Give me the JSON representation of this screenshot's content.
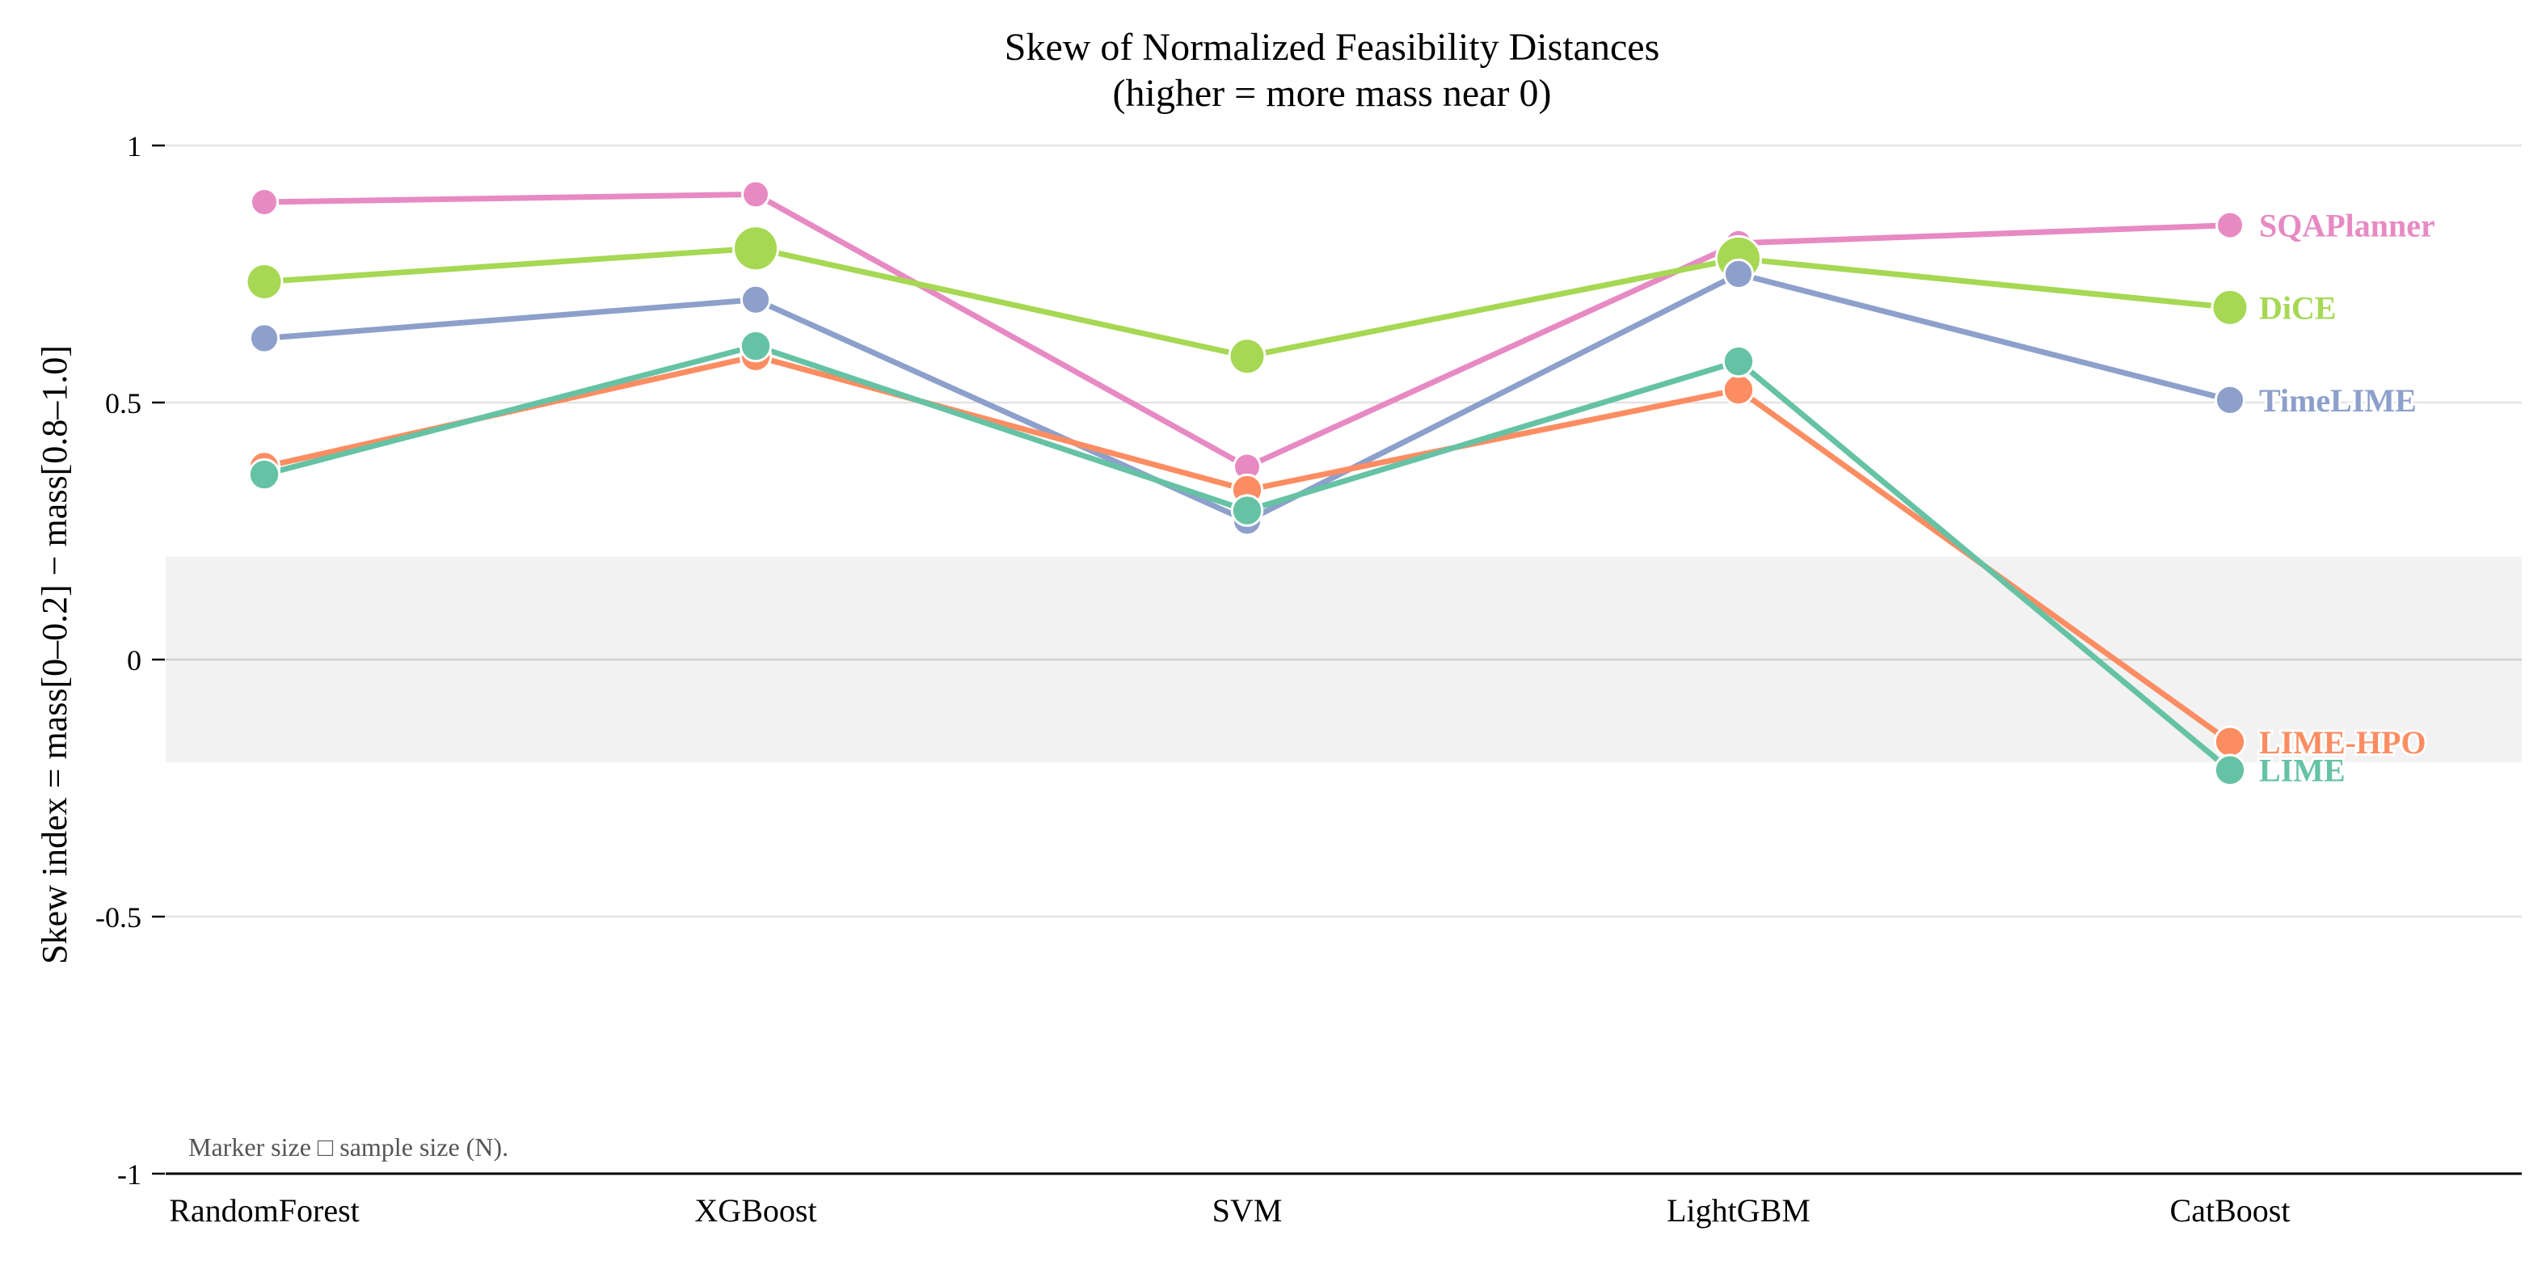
{
  "chart_data": {
    "type": "line",
    "title": "Skew of Normalized Feasibility Distances",
    "subtitle": "(higher = more mass near 0)",
    "xlabel": "",
    "ylabel": "Skew index  =  mass[0–0.2] − mass[0.8–1.0]",
    "categories": [
      "RandomForest",
      "XGBoost",
      "SVM",
      "LightGBM",
      "CatBoost"
    ],
    "ylim": [
      -1,
      1
    ],
    "yticks": [
      {
        "value": 1,
        "label": "1"
      },
      {
        "value": 0.5,
        "label": "0.5"
      },
      {
        "value": 0,
        "label": "0"
      },
      {
        "value": -0.5,
        "label": "-0.5"
      },
      {
        "value": -1,
        "label": "-1"
      }
    ],
    "grid": "horizontal",
    "neutral_band": [
      -0.2,
      0.2
    ],
    "legend": "inline labels at right end of each series",
    "annotation": "Marker size □ sample size (N).",
    "series": [
      {
        "name": "SQAPlanner",
        "color": "#e78ac3",
        "values": [
          0.89,
          0.905,
          0.375,
          0.81,
          0.845
        ],
        "marker_size": [
          1,
          1,
          1,
          1,
          1
        ]
      },
      {
        "name": "DiCE",
        "color": "#a6d854",
        "values": [
          0.735,
          0.8,
          0.59,
          0.78,
          0.685
        ],
        "marker_size": [
          2,
          3,
          2,
          3,
          2
        ]
      },
      {
        "name": "TimeLIME",
        "color": "#8da0cb",
        "values": [
          0.625,
          0.7,
          0.27,
          0.75,
          0.505
        ],
        "marker_size": [
          1.2,
          1.2,
          1.2,
          1.2,
          1.2
        ]
      },
      {
        "name": "LIME-HPO",
        "color": "#fc8d62",
        "values": [
          0.375,
          0.59,
          0.33,
          0.525,
          -0.16
        ],
        "marker_size": [
          1.4,
          1.4,
          1.4,
          1.4,
          1.4
        ]
      },
      {
        "name": "LIME",
        "color": "#66c2a5",
        "values": [
          0.36,
          0.61,
          0.29,
          0.58,
          -0.215
        ],
        "marker_size": [
          1.4,
          1.4,
          1.4,
          1.4,
          1.4
        ]
      }
    ]
  }
}
